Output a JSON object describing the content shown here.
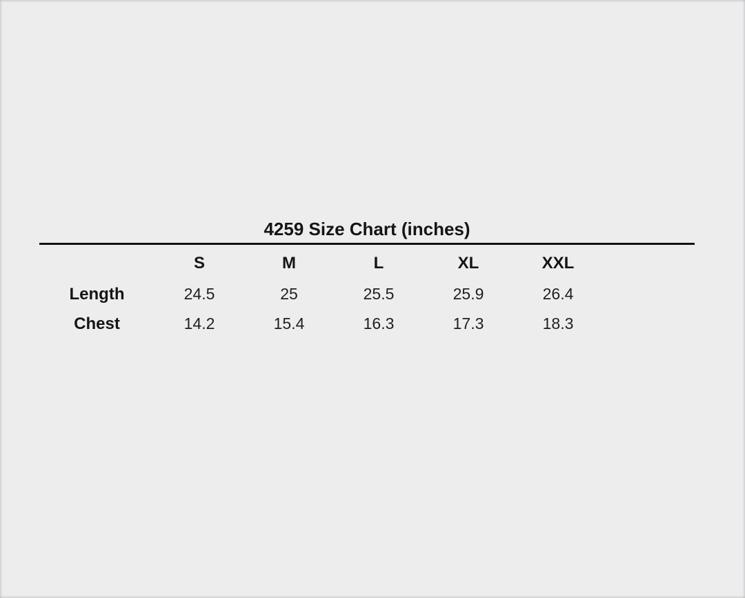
{
  "page": {
    "background_color": "#ededee",
    "text_color": "#1c1c1c",
    "rule_color": "#111111"
  },
  "size_chart": {
    "title": "4259 Size Chart (inches)",
    "columns": [
      "S",
      "M",
      "L",
      "XL",
      "XXL"
    ],
    "rows": [
      {
        "label": "Length",
        "values": [
          "24.5",
          "25",
          "25.5",
          "25.9",
          "26.4"
        ]
      },
      {
        "label": "Chest",
        "values": [
          "14.2",
          "15.4",
          "16.3",
          "17.3",
          "18.3"
        ]
      }
    ]
  },
  "chart_data": {
    "type": "table",
    "title": "4259 Size Chart (inches)",
    "units": "inches",
    "categories": [
      "S",
      "M",
      "L",
      "XL",
      "XXL"
    ],
    "series": [
      {
        "name": "Length",
        "values": [
          24.5,
          25,
          25.5,
          25.9,
          26.4
        ]
      },
      {
        "name": "Chest",
        "values": [
          14.2,
          15.4,
          16.3,
          17.3,
          18.3
        ]
      }
    ]
  }
}
